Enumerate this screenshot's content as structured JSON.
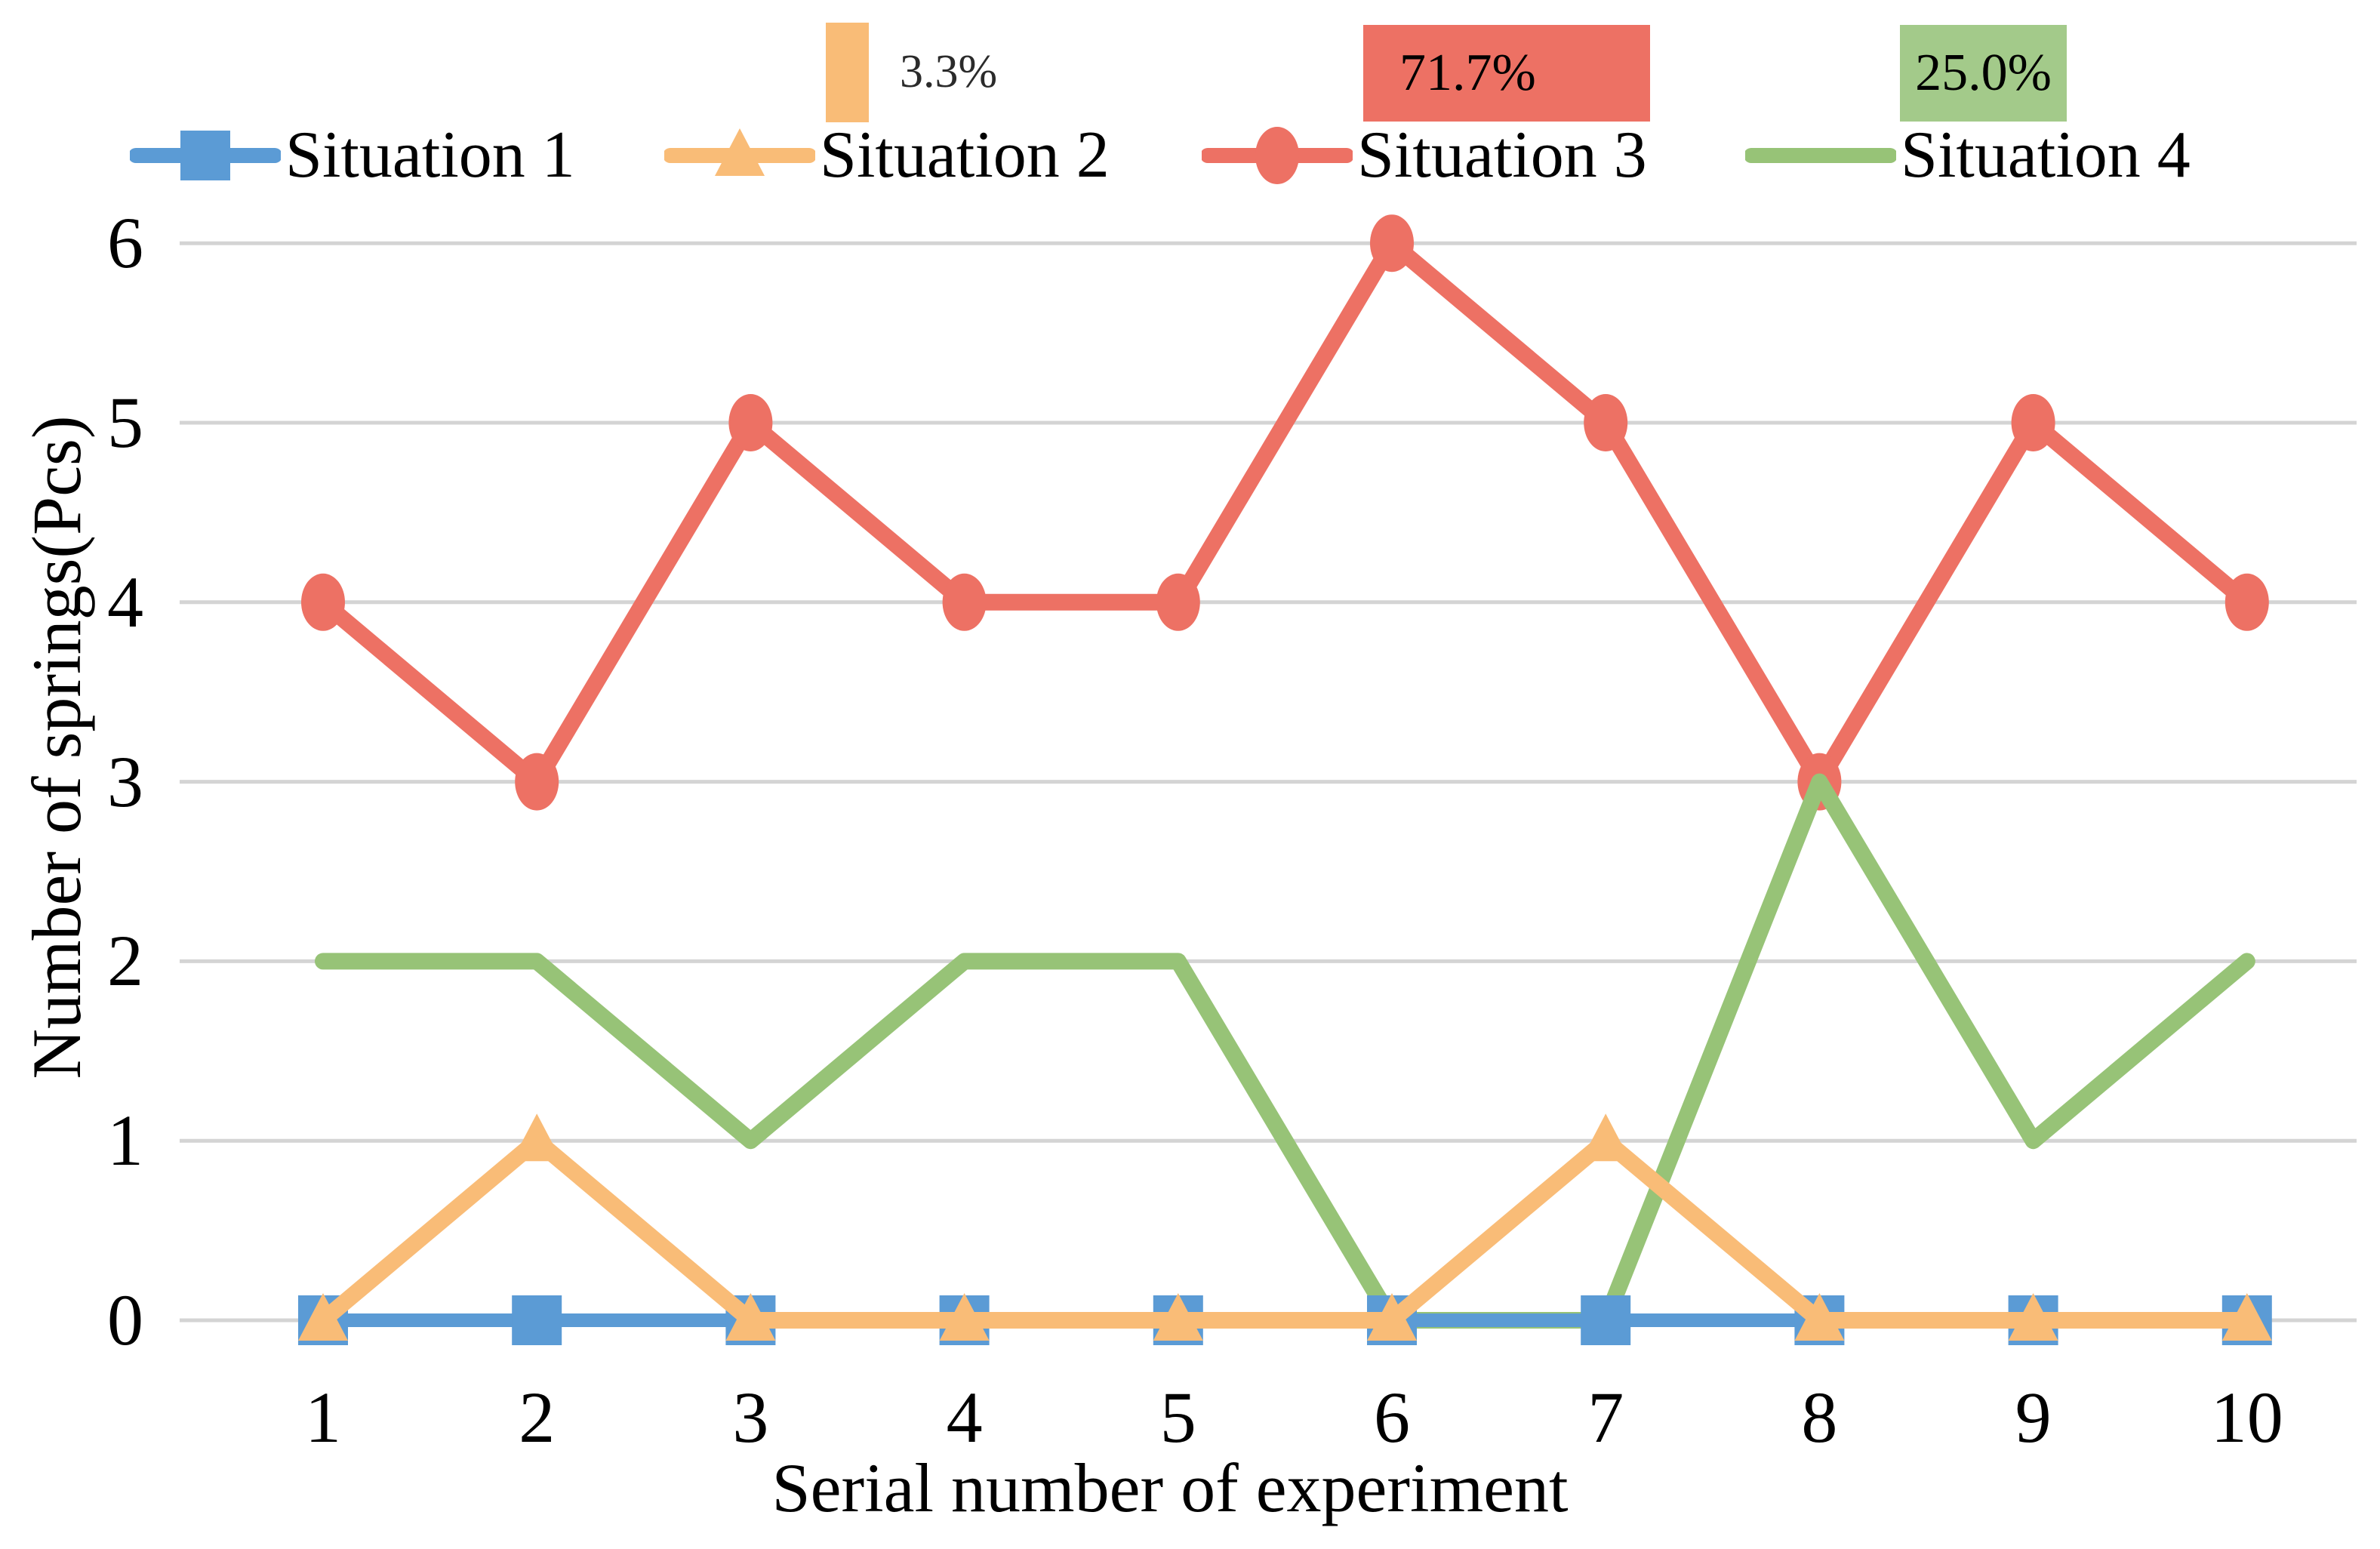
{
  "figure": {
    "background": "#ffffff",
    "gridline_color": "#d4d4d4",
    "text_color": "#000000"
  },
  "legend": {
    "items": [
      {
        "label": "Situation 1",
        "color": "#5B9BD5",
        "marker": "square"
      },
      {
        "label": "Situation 2",
        "color": "#F9BC77",
        "marker": "triangle"
      },
      {
        "label": "Situation 3",
        "color": "#ED7164",
        "marker": "circle"
      },
      {
        "label": "Situation 4",
        "color": "#97C377",
        "marker": "none"
      }
    ]
  },
  "annotations": [
    {
      "series": "Situation 2",
      "type": "bar",
      "label": "3.3%",
      "color": "#F9BC77"
    },
    {
      "series": "Situation 3",
      "type": "box",
      "label": "71.7%",
      "color": "#ED7164"
    },
    {
      "series": "Situation 4",
      "type": "box",
      "label": "25.0%",
      "color": "#A3CA8A"
    }
  ],
  "chart_data": {
    "type": "line",
    "title": "",
    "xlabel": "Serial number of experiment",
    "ylabel": "Number of springs(Pcs)",
    "categories": [
      1,
      2,
      3,
      4,
      5,
      6,
      7,
      8,
      9,
      10
    ],
    "yticks": [
      0,
      1,
      2,
      3,
      4,
      5,
      6
    ],
    "ylim": [
      0,
      6
    ],
    "grid": true,
    "legend_position": "top",
    "series": [
      {
        "name": "Situation 1",
        "color": "#5B9BD5",
        "marker": "square",
        "values": [
          0,
          0,
          0,
          0,
          0,
          0,
          0,
          0,
          0,
          0
        ],
        "percent_label": ""
      },
      {
        "name": "Situation 2",
        "color": "#F9BC77",
        "marker": "triangle",
        "values": [
          0,
          1,
          0,
          0,
          0,
          0,
          1,
          0,
          0,
          0
        ],
        "percent_label": "3.3%"
      },
      {
        "name": "Situation 3",
        "color": "#ED7164",
        "marker": "circle",
        "values": [
          4,
          3,
          5,
          4,
          4,
          6,
          5,
          3,
          5,
          4
        ],
        "percent_label": "71.7%"
      },
      {
        "name": "Situation 4",
        "color": "#97C377",
        "marker": "none",
        "values": [
          2,
          2,
          1,
          2,
          2,
          0,
          0,
          3,
          1,
          2
        ],
        "percent_label": "25.0%"
      }
    ],
    "draw_order": [
      "Situation 3",
      "Situation 4",
      "Situation 1",
      "Situation 2"
    ]
  }
}
